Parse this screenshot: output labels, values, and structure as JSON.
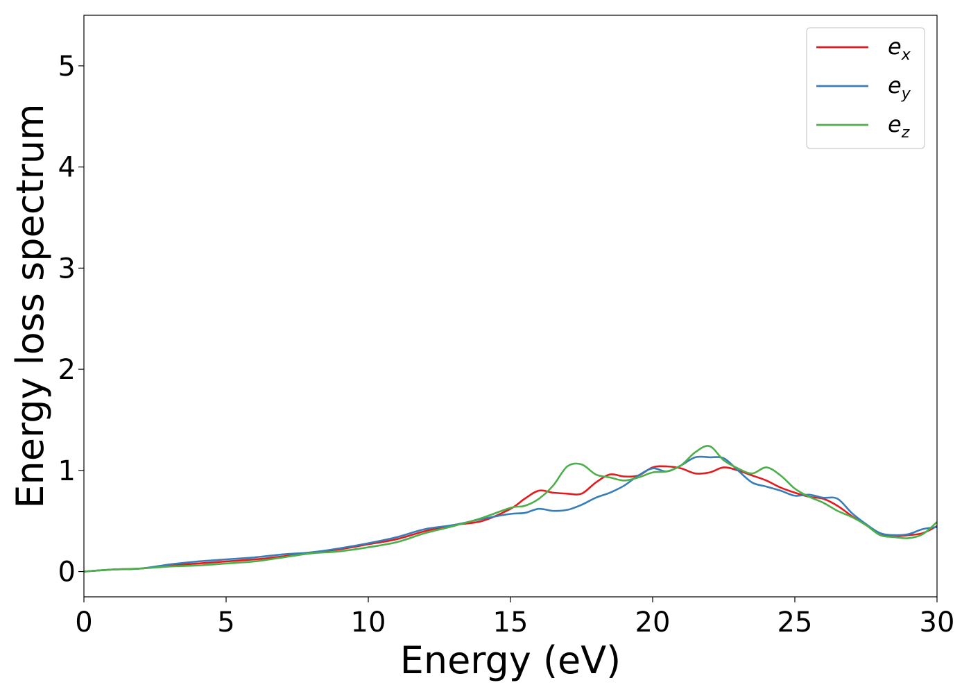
{
  "chart_data": {
    "type": "line",
    "xlabel": "Energy (eV)",
    "ylabel": "Energy loss spectrum",
    "xlim": [
      0,
      30
    ],
    "ylim": [
      -0.25,
      5.5
    ],
    "xticks": [
      "0",
      "5",
      "10",
      "15",
      "20",
      "25",
      "30"
    ],
    "yticks": [
      "0",
      "1",
      "2",
      "3",
      "4",
      "5"
    ],
    "grid": false,
    "legend_position": "top-right",
    "x": [
      0,
      1,
      2,
      3,
      4,
      5,
      6,
      7,
      8,
      9,
      10,
      11,
      12,
      13,
      14,
      15,
      15.5,
      16,
      16.5,
      17,
      17.5,
      18,
      18.5,
      19,
      19.5,
      20,
      20.5,
      21,
      21.5,
      22,
      22.5,
      23,
      23.5,
      24,
      24.5,
      25,
      25.5,
      26,
      26.5,
      27,
      27.5,
      28,
      28.5,
      29,
      29.5,
      30
    ],
    "series": [
      {
        "name": "e",
        "subscript": "x",
        "color": "#e41a1c",
        "values": [
          0.0,
          0.02,
          0.03,
          0.06,
          0.08,
          0.1,
          0.12,
          0.15,
          0.19,
          0.22,
          0.27,
          0.32,
          0.4,
          0.46,
          0.5,
          0.62,
          0.72,
          0.8,
          0.78,
          0.77,
          0.77,
          0.88,
          0.96,
          0.94,
          0.95,
          1.03,
          1.04,
          1.02,
          0.97,
          0.98,
          1.03,
          1.0,
          0.95,
          0.9,
          0.83,
          0.78,
          0.74,
          0.72,
          0.65,
          0.55,
          0.46,
          0.37,
          0.35,
          0.36,
          0.38,
          0.45
        ]
      },
      {
        "name": "e",
        "subscript": "y",
        "color": "#377eb8",
        "values": [
          0.0,
          0.02,
          0.03,
          0.07,
          0.1,
          0.12,
          0.14,
          0.17,
          0.19,
          0.23,
          0.28,
          0.34,
          0.42,
          0.46,
          0.52,
          0.57,
          0.58,
          0.62,
          0.6,
          0.61,
          0.66,
          0.73,
          0.78,
          0.85,
          0.95,
          1.02,
          0.99,
          1.05,
          1.13,
          1.13,
          1.12,
          1.0,
          0.88,
          0.84,
          0.8,
          0.75,
          0.76,
          0.73,
          0.72,
          0.58,
          0.47,
          0.38,
          0.36,
          0.37,
          0.42,
          0.44
        ]
      },
      {
        "name": "e",
        "subscript": "z",
        "color": "#4daf4a",
        "values": [
          0.0,
          0.02,
          0.03,
          0.05,
          0.06,
          0.08,
          0.1,
          0.14,
          0.18,
          0.2,
          0.24,
          0.29,
          0.38,
          0.45,
          0.53,
          0.63,
          0.65,
          0.72,
          0.85,
          1.04,
          1.06,
          0.96,
          0.93,
          0.9,
          0.93,
          0.98,
          0.99,
          1.05,
          1.18,
          1.24,
          1.1,
          1.02,
          0.97,
          1.03,
          0.95,
          0.82,
          0.74,
          0.68,
          0.6,
          0.54,
          0.46,
          0.36,
          0.34,
          0.33,
          0.37,
          0.49
        ]
      }
    ]
  }
}
